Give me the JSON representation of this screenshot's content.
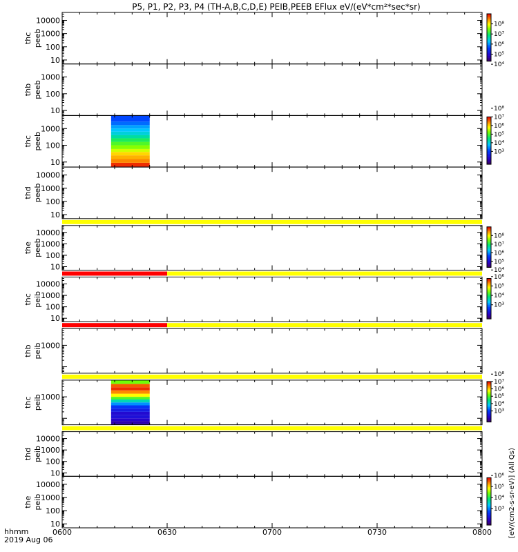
{
  "chart_data": {
    "type": "heatmap",
    "title": "P5, P1, P2, P3, P4 (TH-A,B,C,D,E) PEIB,PEEB EFlux eV/(eV*cm²*sec*sr)",
    "x_ticks": [
      "0600",
      "0630",
      "0700",
      "0730",
      "0800"
    ],
    "x_unit_label": "hhmm",
    "date_label": "2019 Aug 06",
    "colorbar_label": "[eV/(cm2-s-sr-eV)] (All Qs)",
    "panels": [
      {
        "probe": "thc",
        "instrument": "peeb",
        "yscale": "log",
        "ylim": [
          5,
          40000
        ],
        "y_ticks": [
          "10",
          "100",
          "1000",
          "10000"
        ],
        "colorbar": {
          "ticks": [
            "10⁴",
            "10⁵",
            "10⁶",
            "10⁷",
            "10⁸"
          ],
          "range_exp": [
            3.3,
            8
          ]
        },
        "data": [],
        "flag_bar": null
      },
      {
        "probe": "thb",
        "instrument": "peeb",
        "yscale": "log",
        "ylim": [
          5,
          6000
        ],
        "y_ticks": [
          "10",
          "100",
          "1000"
        ],
        "colorbar": null,
        "data": [],
        "flag_bar": null
      },
      {
        "probe": "thc",
        "instrument": "peeb",
        "yscale": "log",
        "ylim": [
          5,
          6000
        ],
        "y_ticks": [
          "10",
          "100",
          "1000"
        ],
        "colorbar": {
          "ticks": [
            "10³",
            "10⁴",
            "10⁵",
            "10⁶",
            "10⁷",
            "10⁸"
          ],
          "range_exp": [
            2.5,
            8
          ]
        },
        "data": [
          {
            "t_start": 6.233,
            "t_end": 6.417,
            "levels": [
              [
                5.5,
                8.0
              ],
              [
                9,
                7.8
              ],
              [
                15,
                7.4
              ],
              [
                25,
                7.2
              ],
              [
                40,
                7.0
              ],
              [
                60,
                6.6
              ],
              [
                100,
                6.3
              ],
              [
                160,
                6.0
              ],
              [
                260,
                5.7
              ],
              [
                400,
                5.3
              ],
              [
                650,
                5.0
              ],
              [
                1000,
                4.8
              ],
              [
                1600,
                4.6
              ],
              [
                2600,
                4.3
              ],
              [
                6000,
                4.1
              ]
            ]
          }
        ],
        "flag_bar": null
      },
      {
        "probe": "thd",
        "instrument": "peeb",
        "yscale": "log",
        "ylim": [
          5,
          40000
        ],
        "y_ticks": [
          "10",
          "100",
          "1000",
          "10000"
        ],
        "colorbar": null,
        "data": [],
        "flag_bar": null
      },
      {
        "probe": "the",
        "instrument": "peeb",
        "yscale": "log",
        "ylim": [
          5,
          40000
        ],
        "y_ticks": [
          "10",
          "100",
          "1000",
          "10000"
        ],
        "colorbar": {
          "ticks": [
            "10⁴",
            "10⁵",
            "10⁶",
            "10⁷",
            "10⁸"
          ],
          "range_exp": [
            3.3,
            8
          ]
        },
        "data": [],
        "flag_bar": {
          "segments": [
            {
              "t_start": 6.0,
              "t_end": 8.0,
              "color": "#ffff00"
            }
          ]
        }
      },
      {
        "probe": "thc",
        "instrument": "peib",
        "yscale": "log",
        "ylim": [
          5,
          40000
        ],
        "y_ticks": [
          "10",
          "100",
          "1000",
          "10000"
        ],
        "colorbar": {
          "ticks": [
            "10³",
            "10⁴",
            "10⁵",
            "10⁶"
          ],
          "range_exp": [
            2.5,
            6.8
          ]
        },
        "data": [],
        "flag_bar": {
          "segments": [
            {
              "t_start": 6.0,
              "t_end": 6.5,
              "color": "#ff0000"
            },
            {
              "t_start": 6.5,
              "t_end": 8.0,
              "color": "#ffff00"
            }
          ]
        }
      },
      {
        "probe": "thb",
        "instrument": "peib",
        "yscale": "log",
        "ylim": [
          50,
          6000
        ],
        "y_ticks": [
          "1000"
        ],
        "colorbar": null,
        "data": [],
        "flag_bar": {
          "segments": [
            {
              "t_start": 6.0,
              "t_end": 6.5,
              "color": "#ff0000"
            },
            {
              "t_start": 6.5,
              "t_end": 8.0,
              "color": "#ffff00"
            }
          ]
        }
      },
      {
        "probe": "thc",
        "instrument": "peib",
        "yscale": "log",
        "ylim": [
          50,
          6000
        ],
        "y_ticks": [
          "1000"
        ],
        "colorbar": {
          "ticks": [
            "10³",
            "10⁴",
            "10⁵",
            "10⁶",
            "10⁷",
            "10⁸"
          ],
          "range_exp": [
            2.5,
            8
          ]
        },
        "data": [
          {
            "t_start": 6.233,
            "t_end": 6.417,
            "levels": [
              [
                55,
                2.8
              ],
              [
                75,
                3.0
              ],
              [
                100,
                3.2
              ],
              [
                140,
                3.4
              ],
              [
                200,
                3.3
              ],
              [
                280,
                3.6
              ],
              [
                400,
                3.9
              ],
              [
                550,
                4.5
              ],
              [
                750,
                5.2
              ],
              [
                1000,
                6.0
              ],
              [
                1400,
                6.8
              ],
              [
                2000,
                7.4
              ],
              [
                2800,
                7.8
              ],
              [
                4000,
                7.6
              ],
              [
                6000,
                6.2
              ]
            ]
          }
        ],
        "flag_bar": {
          "segments": [
            {
              "t_start": 6.0,
              "t_end": 8.0,
              "color": "#ffff00"
            }
          ]
        }
      },
      {
        "probe": "thd",
        "instrument": "peib",
        "yscale": "log",
        "ylim": [
          5,
          40000
        ],
        "y_ticks": [
          "10",
          "100",
          "1000",
          "10000"
        ],
        "colorbar": null,
        "data": [],
        "flag_bar": {
          "segments": [
            {
              "t_start": 6.0,
              "t_end": 8.0,
              "color": "#ffff00"
            }
          ]
        }
      },
      {
        "probe": "the",
        "instrument": "peib",
        "yscale": "log",
        "ylim": [
          5,
          40000
        ],
        "y_ticks": [
          "10",
          "100",
          "1000",
          "10000"
        ],
        "colorbar": {
          "ticks": [
            "10³",
            "10⁴",
            "10⁵",
            "10⁶"
          ],
          "range_exp": [
            2.5,
            6.8
          ]
        },
        "data": [],
        "flag_bar": null
      }
    ]
  }
}
